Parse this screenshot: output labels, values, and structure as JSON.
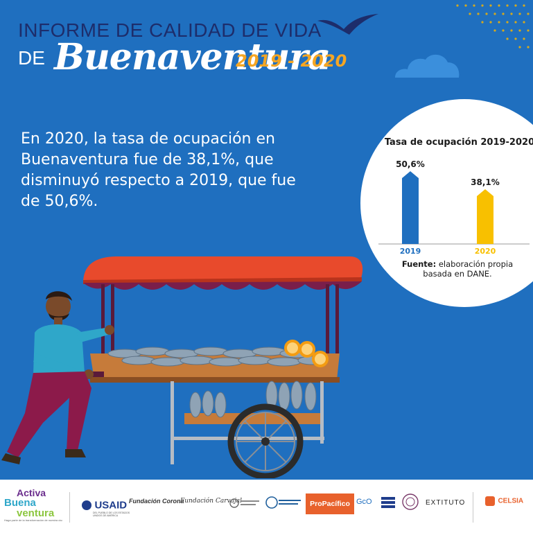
{
  "header": {
    "title_line1": "INFORME DE CALIDAD DE VIDA",
    "title_de": "DE",
    "title_city": "Buenaventura",
    "title_years": "2019 - 2020"
  },
  "body": {
    "text": "En 2020, la tasa de ocupación en Buenaventura fue de 38,1%, que disminuyó respecto a 2019, que fue de 50,6%."
  },
  "chart_data": {
    "type": "bar",
    "title": "Tasa de ocupación 2019-2020",
    "categories": [
      "2019",
      "2020"
    ],
    "values": [
      50.6,
      38.1
    ],
    "value_labels": [
      "50,6%",
      "38,1%"
    ],
    "colors": [
      "#1f6fbf",
      "#f8c000"
    ],
    "ylim": [
      0,
      60
    ],
    "grid": false,
    "legend": "none",
    "source_label": "Fuente:",
    "source_text": "elaboración propia basada en DANE."
  },
  "footer": {
    "logos": [
      {
        "name": "Activa Buenaventura",
        "line1": "Activa",
        "line2": "Buena",
        "line3": "ventura",
        "tagline": "Haga parte de la transformación de nuestra ciudad"
      },
      {
        "name": "USAID",
        "text": "USAID",
        "sub": "DEL PUEBLO DE LOS ESTADOS UNIDOS DE AMÉRICA"
      },
      {
        "name": "Fundación Corona",
        "text": "Fundación Corona"
      },
      {
        "name": "Fundación Carvajal",
        "text": "Fundación Carvajal"
      },
      {
        "name": "logo-4",
        "text": ""
      },
      {
        "name": "logo-5",
        "text": ""
      },
      {
        "name": "ProPacífico",
        "text": "ProPacífico"
      },
      {
        "name": "GcO",
        "text": "GcO"
      },
      {
        "name": "logo-8",
        "text": ""
      },
      {
        "name": "logo-9",
        "text": ""
      },
      {
        "name": "Extituto",
        "text": "EXTITUTO"
      },
      {
        "name": "Celsia",
        "text": "CELSIA"
      }
    ]
  }
}
